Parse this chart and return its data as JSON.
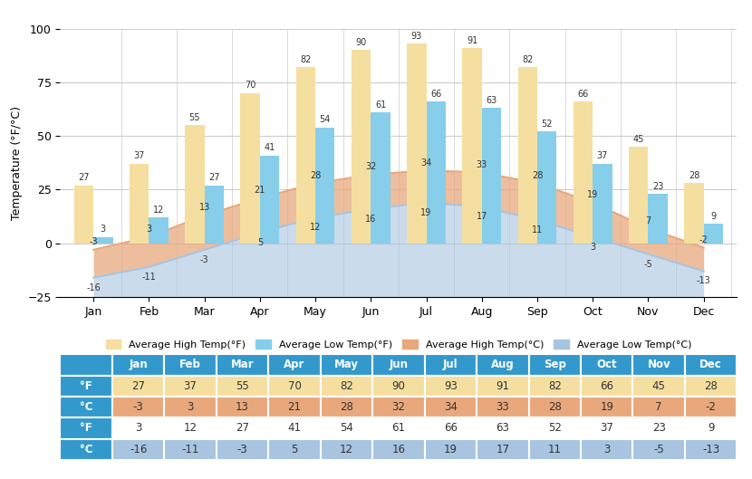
{
  "months": [
    "Jan",
    "Feb",
    "Mar",
    "Apr",
    "May",
    "Jun",
    "Jul",
    "Aug",
    "Sep",
    "Oct",
    "Nov",
    "Dec"
  ],
  "high_F": [
    27,
    37,
    55,
    70,
    82,
    90,
    93,
    91,
    82,
    66,
    45,
    28
  ],
  "high_C": [
    -3,
    3,
    13,
    21,
    28,
    32,
    34,
    33,
    28,
    19,
    7,
    -2
  ],
  "low_F": [
    3,
    12,
    27,
    41,
    54,
    61,
    66,
    63,
    52,
    37,
    23,
    9
  ],
  "low_C": [
    -16,
    -11,
    -3,
    5,
    12,
    16,
    19,
    17,
    11,
    3,
    -5,
    -13
  ],
  "bar_high_color": "#F5DFA0",
  "bar_low_color": "#87CEEB",
  "fill_high_color": "#E8A87C",
  "fill_low_color": "#A8C4E0",
  "title": "Temperature (°F/°C)",
  "ylabel": "Temperature (°F/°C)",
  "ylim": [
    -25,
    100
  ],
  "yticks": [
    -25,
    0,
    25,
    50,
    75,
    100
  ],
  "legend_high_F": "Average High Temp(°F)",
  "legend_low_F": "Average Low Temp(°F)",
  "legend_high_C": "Average High Temp(°C)",
  "legend_low_C": "Average Low Temp(°C)",
  "table_header_color": "#3399CC",
  "table_row1_color": "#F5DFA0",
  "table_row2_color": "#E8A87C",
  "table_row3_color": "#FFFFFF",
  "table_row4_color": "#A8C4E0",
  "table_label_color": "#3399CC",
  "table_text_color": "#333333",
  "row_labels": [
    "°F",
    "°C",
    "°F",
    "°C"
  ]
}
